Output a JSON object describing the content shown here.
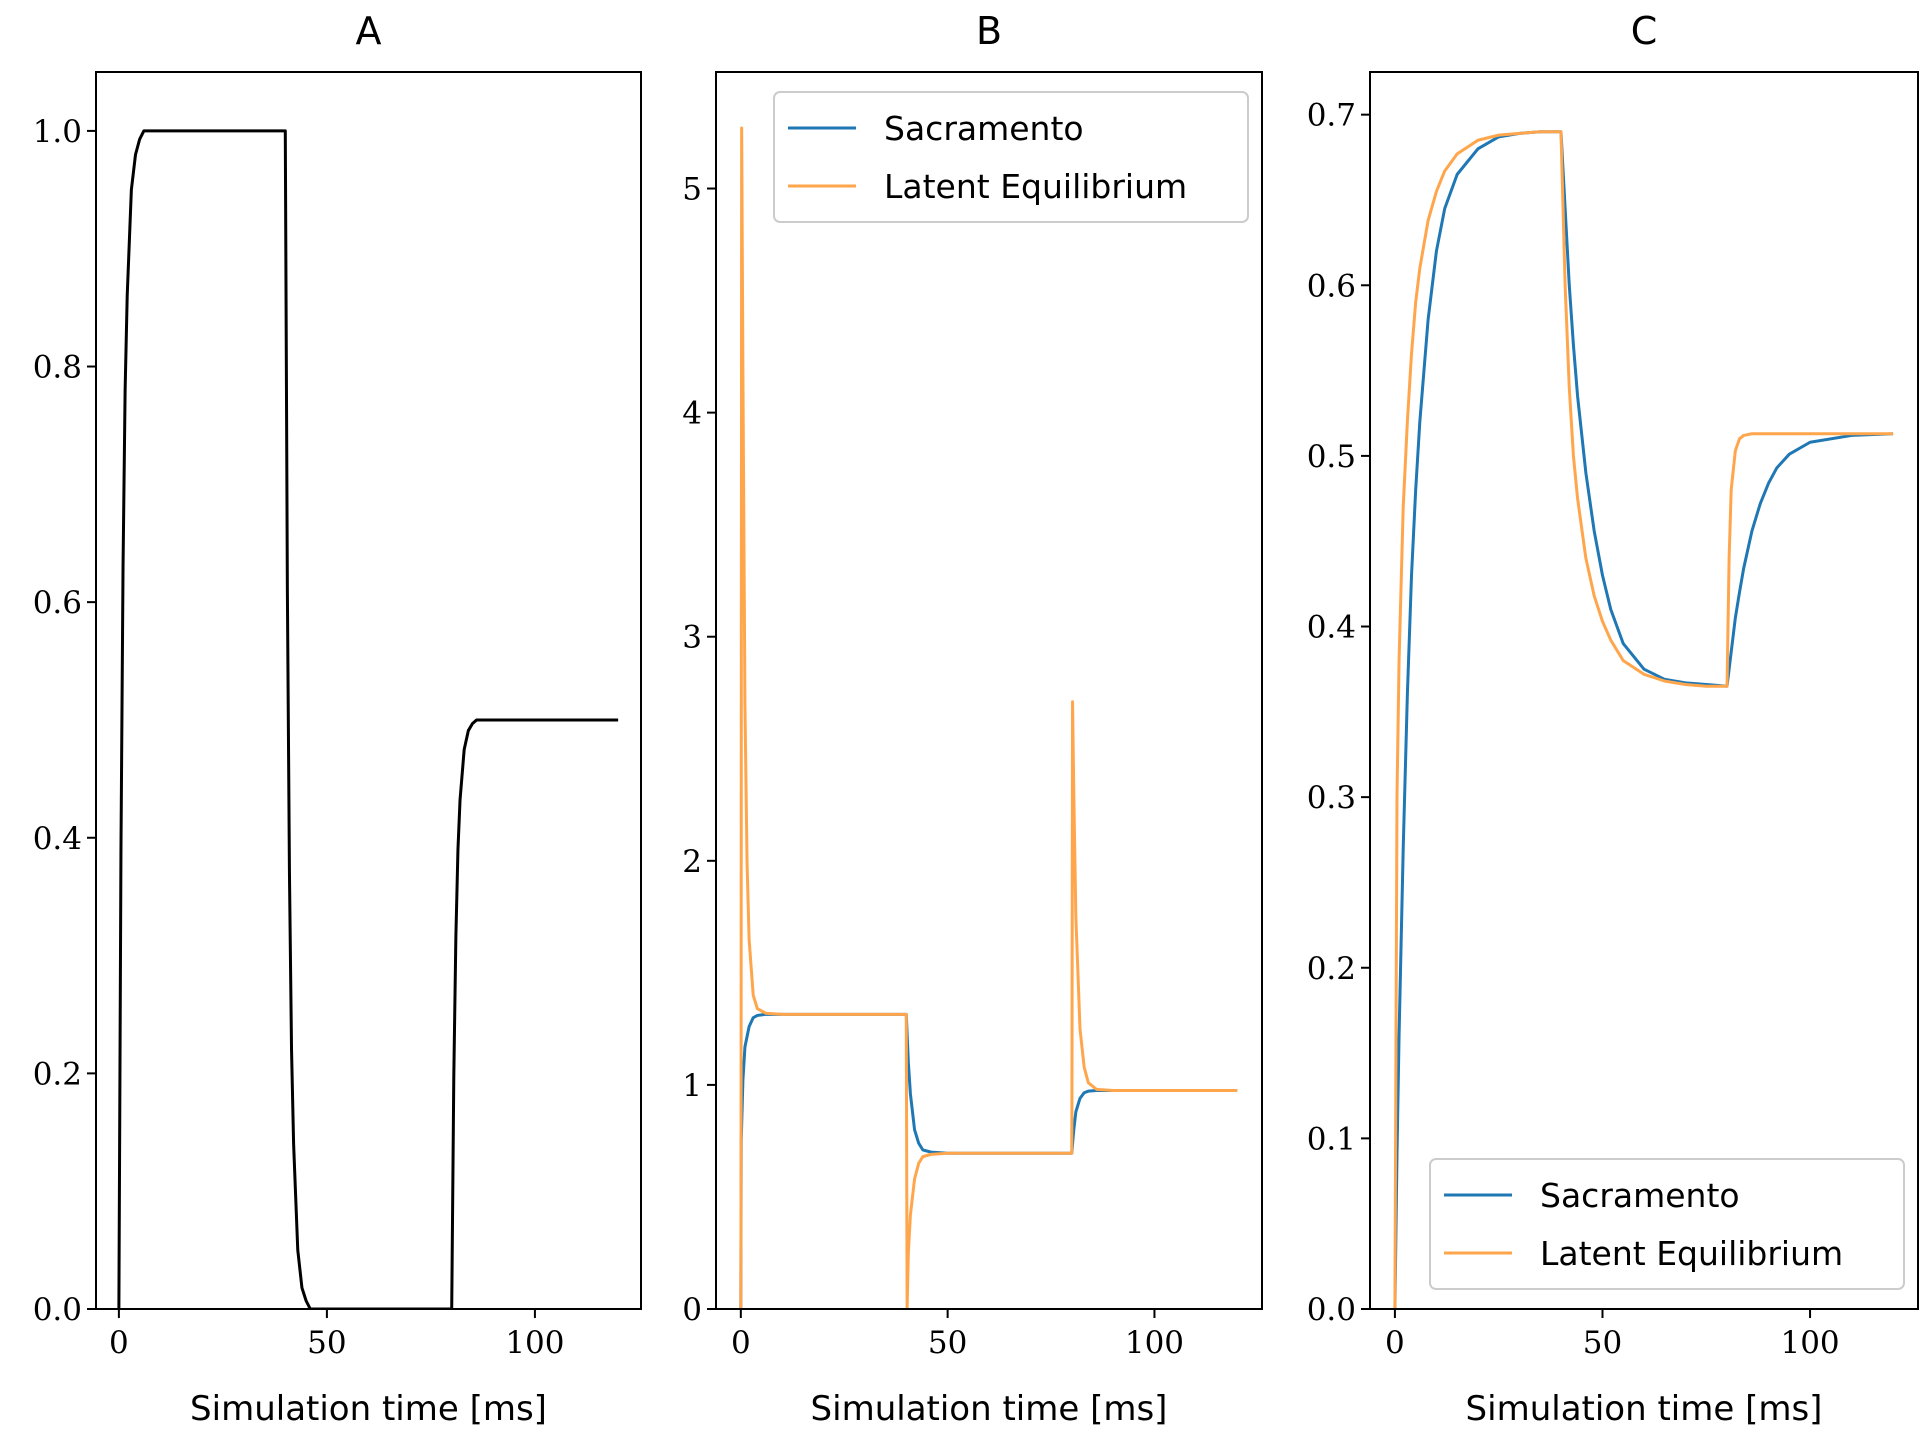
{
  "figure": {
    "background": "#ffffff"
  },
  "chart_data": [
    {
      "type": "line",
      "title": "A",
      "xlabel": "Simulation time [ms]",
      "ylabel": "",
      "xlim": [
        -5.5,
        125.5
      ],
      "ylim": [
        0.0,
        1.05
      ],
      "xticks": [
        0,
        50,
        100
      ],
      "xtick_labels": [
        "0",
        "50",
        "100"
      ],
      "yticks": [
        0.0,
        0.2,
        0.4,
        0.6,
        0.8,
        1.0
      ],
      "ytick_labels": [
        "0.0",
        "0.2",
        "0.4",
        "0.6",
        "0.8",
        "1.0"
      ],
      "grid": false,
      "legend": null,
      "series": [
        {
          "color": "#000000",
          "x": [
            0,
            0.5,
            1,
            1.5,
            2,
            3,
            4,
            5,
            6,
            10,
            20,
            30,
            40,
            40.5,
            41,
            41.5,
            42,
            43,
            44,
            45,
            46,
            50,
            60,
            70,
            80,
            80.5,
            81,
            81.5,
            82,
            83,
            84,
            85,
            86,
            90,
            100,
            110,
            120
          ],
          "y": [
            0,
            0.39,
            0.63,
            0.78,
            0.86,
            0.95,
            0.98,
            0.993,
            1.0,
            1.0,
            1.0,
            1.0,
            1.0,
            0.61,
            0.37,
            0.22,
            0.14,
            0.05,
            0.018,
            0.007,
            0.0,
            0.0,
            0.0,
            0.0,
            0.0,
            0.197,
            0.316,
            0.39,
            0.432,
            0.475,
            0.491,
            0.497,
            0.5,
            0.5,
            0.5,
            0.5,
            0.5
          ]
        }
      ]
    },
    {
      "type": "line",
      "title": "B",
      "xlabel": "Simulation time [ms]",
      "ylabel": "",
      "xlim": [
        -6,
        126
      ],
      "ylim": [
        0,
        5.52
      ],
      "xticks": [
        0,
        50,
        100
      ],
      "xtick_labels": [
        "0",
        "50",
        "100"
      ],
      "yticks": [
        0,
        1,
        2,
        3,
        4,
        5
      ],
      "ytick_labels": [
        "0",
        "1",
        "2",
        "3",
        "4",
        "5"
      ],
      "grid": false,
      "legend": {
        "loc": "upper right"
      },
      "series": [
        {
          "name": "Sacramento",
          "color": "#1f77b4",
          "x": [
            0,
            0.1,
            0.5,
            1,
            2,
            3,
            4,
            6,
            10,
            20,
            30,
            40,
            40.5,
            41,
            42,
            43,
            44,
            46,
            50,
            60,
            70,
            80,
            80.5,
            81,
            82,
            83,
            84,
            86,
            90,
            100,
            110,
            120
          ],
          "y": [
            0,
            0.75,
            1.02,
            1.17,
            1.26,
            1.3,
            1.31,
            1.315,
            1.315,
            1.315,
            1.315,
            1.315,
            1.1,
            0.96,
            0.8,
            0.74,
            0.71,
            0.7,
            0.695,
            0.695,
            0.695,
            0.695,
            0.8,
            0.88,
            0.94,
            0.965,
            0.972,
            0.975,
            0.975,
            0.975,
            0.975,
            0.975
          ]
        },
        {
          "name": "Latent Equilibrium",
          "color": "#ffa64d",
          "x": [
            0,
            0.05,
            0.2,
            0.5,
            1,
            1.5,
            2,
            3,
            4,
            6,
            10,
            20,
            30,
            40,
            40.2,
            40.5,
            41,
            42,
            43,
            44,
            46,
            50,
            60,
            70,
            80,
            80.05,
            80.2,
            80.5,
            81,
            82,
            83,
            84,
            86,
            90,
            100,
            110,
            120
          ],
          "y": [
            0,
            0.5,
            5.27,
            4.2,
            2.7,
            2.0,
            1.65,
            1.4,
            1.34,
            1.32,
            1.315,
            1.315,
            1.315,
            1.315,
            0.0,
            0.25,
            0.42,
            0.58,
            0.65,
            0.68,
            0.69,
            0.695,
            0.695,
            0.695,
            0.695,
            0.9,
            2.71,
            2.3,
            1.75,
            1.25,
            1.08,
            1.01,
            0.98,
            0.975,
            0.975,
            0.975,
            0.975
          ]
        }
      ]
    },
    {
      "type": "line",
      "title": "C",
      "xlabel": "Simulation time [ms]",
      "ylabel": "",
      "xlim": [
        -6,
        126
      ],
      "ylim": [
        0.0,
        0.725
      ],
      "xticks": [
        0,
        50,
        100
      ],
      "xtick_labels": [
        "0",
        "50",
        "100"
      ],
      "yticks": [
        0.0,
        0.1,
        0.2,
        0.3,
        0.4,
        0.5,
        0.6,
        0.7
      ],
      "ytick_labels": [
        "0.0",
        "0.1",
        "0.2",
        "0.3",
        "0.4",
        "0.5",
        "0.6",
        "0.7"
      ],
      "grid": false,
      "legend": {
        "loc": "lower right"
      },
      "series": [
        {
          "name": "Sacramento",
          "color": "#1f77b4",
          "x": [
            0,
            0.5,
            1,
            2,
            3,
            4,
            5,
            6,
            8,
            10,
            12,
            15,
            20,
            25,
            30,
            35,
            40,
            41,
            42,
            43,
            44,
            46,
            48,
            50,
            52,
            55,
            60,
            65,
            70,
            75,
            80,
            81,
            82,
            83,
            84,
            86,
            88,
            90,
            92,
            95,
            100,
            110,
            120
          ],
          "y": [
            0,
            0.09,
            0.16,
            0.27,
            0.36,
            0.43,
            0.48,
            0.52,
            0.58,
            0.62,
            0.645,
            0.665,
            0.68,
            0.687,
            0.689,
            0.69,
            0.69,
            0.645,
            0.6,
            0.565,
            0.535,
            0.49,
            0.456,
            0.43,
            0.41,
            0.39,
            0.375,
            0.369,
            0.367,
            0.366,
            0.365,
            0.385,
            0.405,
            0.42,
            0.434,
            0.456,
            0.472,
            0.484,
            0.493,
            0.501,
            0.508,
            0.512,
            0.513
          ]
        },
        {
          "name": "Latent Equilibrium",
          "color": "#ffa64d",
          "x": [
            0,
            0.5,
            1,
            2,
            3,
            4,
            5,
            6,
            8,
            10,
            12,
            15,
            20,
            25,
            30,
            35,
            40,
            41,
            42,
            43,
            44,
            46,
            48,
            50,
            52,
            55,
            60,
            65,
            70,
            75,
            80,
            80.5,
            81,
            82,
            83,
            84,
            86,
            90,
            100,
            110,
            120
          ],
          "y": [
            0,
            0.3,
            0.38,
            0.47,
            0.52,
            0.56,
            0.59,
            0.61,
            0.638,
            0.655,
            0.667,
            0.677,
            0.685,
            0.688,
            0.689,
            0.69,
            0.69,
            0.6,
            0.54,
            0.5,
            0.475,
            0.44,
            0.418,
            0.403,
            0.392,
            0.38,
            0.372,
            0.368,
            0.366,
            0.365,
            0.365,
            0.44,
            0.48,
            0.503,
            0.51,
            0.512,
            0.513,
            0.513,
            0.513,
            0.513,
            0.513
          ]
        }
      ]
    }
  ]
}
